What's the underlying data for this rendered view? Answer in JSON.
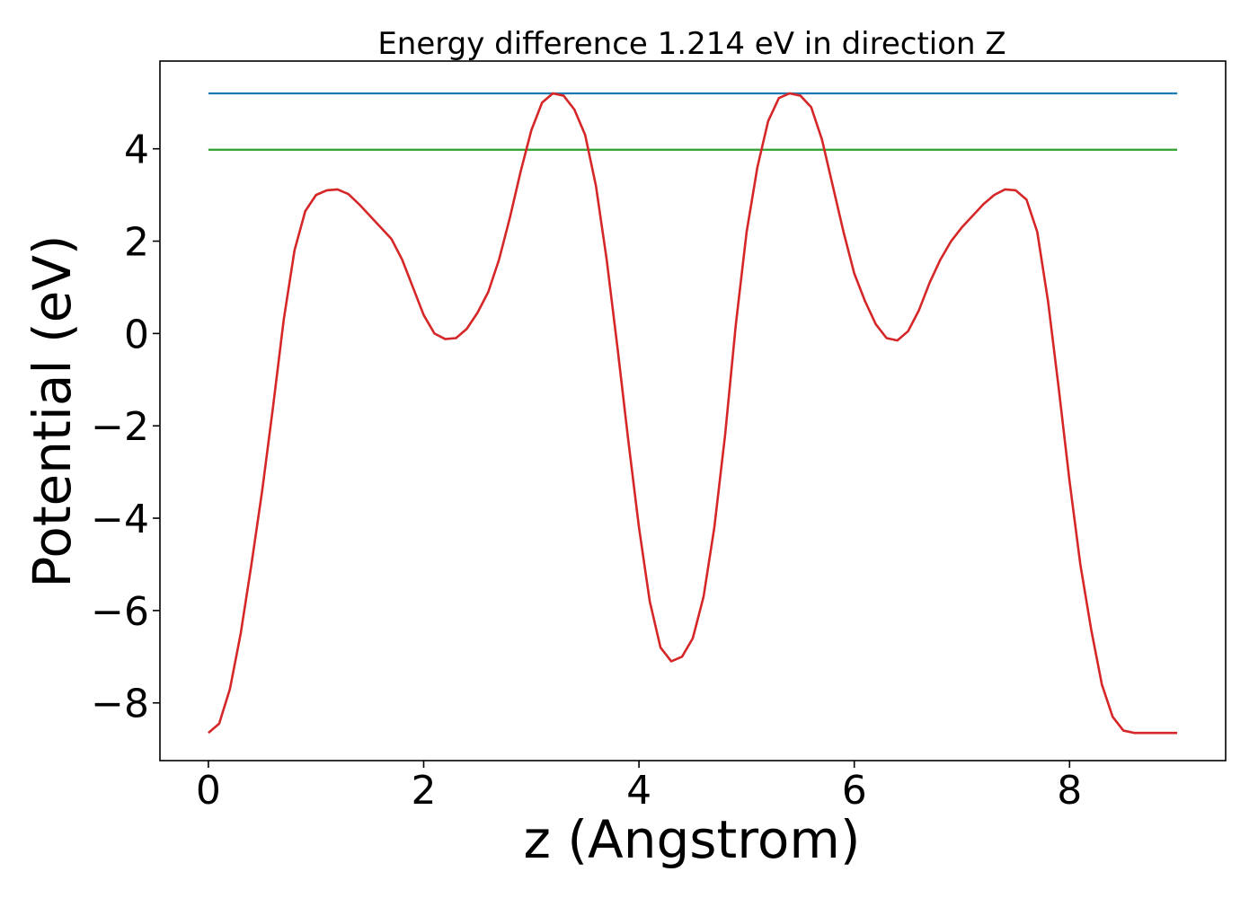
{
  "chart_data": {
    "type": "line",
    "title": "Energy difference 1.214 eV in direction Z",
    "xlabel": "z (Angstrom)",
    "ylabel": "Potential (eV)",
    "xlim": [
      -0.45,
      9.45
    ],
    "ylim": [
      -9.25,
      5.9
    ],
    "xticks": [
      0,
      2,
      4,
      6,
      8
    ],
    "xtick_labels": [
      "0",
      "2",
      "4",
      "6",
      "8"
    ],
    "yticks": [
      -8,
      -6,
      -4,
      -2,
      0,
      2,
      4
    ],
    "ytick_labels": [
      "−8",
      "−6",
      "−4",
      "−2",
      "0",
      "2",
      "4"
    ],
    "grid": false,
    "series": [
      {
        "color": "#1f77b4",
        "x": [
          0,
          9
        ],
        "y": [
          5.2,
          5.2
        ]
      },
      {
        "color": "#2ca02c",
        "x": [
          0,
          9
        ],
        "y": [
          3.98,
          3.98
        ]
      },
      {
        "color": "#d62728",
        "x": [
          0,
          0.1,
          0.2,
          0.3,
          0.4,
          0.5,
          0.6,
          0.7,
          0.8,
          0.9,
          1.0,
          1.1,
          1.2,
          1.3,
          1.4,
          1.5,
          1.6,
          1.7,
          1.8,
          1.9,
          2.0,
          2.1,
          2.2,
          2.3,
          2.4,
          2.5,
          2.6,
          2.7,
          2.8,
          2.9,
          3.0,
          3.1,
          3.2,
          3.3,
          3.4,
          3.5,
          3.6,
          3.7,
          3.8,
          3.9,
          4.0,
          4.1,
          4.2,
          4.3,
          4.4,
          4.5,
          4.6,
          4.7,
          4.8,
          4.9,
          5.0,
          5.1,
          5.2,
          5.3,
          5.4,
          5.5,
          5.6,
          5.7,
          5.8,
          5.9,
          6.0,
          6.1,
          6.2,
          6.3,
          6.4,
          6.5,
          6.6,
          6.7,
          6.8,
          6.9,
          7.0,
          7.1,
          7.2,
          7.3,
          7.4,
          7.5,
          7.6,
          7.7,
          7.8,
          7.9,
          8.0,
          8.1,
          8.2,
          8.3,
          8.4,
          8.5,
          8.6,
          8.7,
          8.8,
          8.9,
          9.0
        ],
        "y": [
          -8.65,
          -8.45,
          -7.7,
          -6.5,
          -5.0,
          -3.4,
          -1.6,
          0.3,
          1.8,
          2.65,
          3.0,
          3.1,
          3.12,
          3.02,
          2.8,
          2.55,
          2.3,
          2.05,
          1.6,
          1.0,
          0.4,
          0.0,
          -0.12,
          -0.1,
          0.1,
          0.45,
          0.9,
          1.6,
          2.5,
          3.5,
          4.4,
          5.0,
          5.2,
          5.15,
          4.85,
          4.3,
          3.2,
          1.6,
          -0.3,
          -2.3,
          -4.2,
          -5.8,
          -6.8,
          -7.1,
          -7.0,
          -6.6,
          -5.7,
          -4.2,
          -2.2,
          0.2,
          2.2,
          3.6,
          4.6,
          5.1,
          5.2,
          5.15,
          4.9,
          4.2,
          3.2,
          2.2,
          1.3,
          0.7,
          0.2,
          -0.1,
          -0.15,
          0.05,
          0.5,
          1.1,
          1.6,
          2.0,
          2.3,
          2.55,
          2.8,
          3.0,
          3.12,
          3.1,
          2.9,
          2.2,
          0.7,
          -1.2,
          -3.2,
          -5.0,
          -6.4,
          -7.6,
          -8.3,
          -8.6,
          -8.65,
          -8.65,
          -8.65,
          -8.65,
          -8.65
        ]
      }
    ]
  }
}
